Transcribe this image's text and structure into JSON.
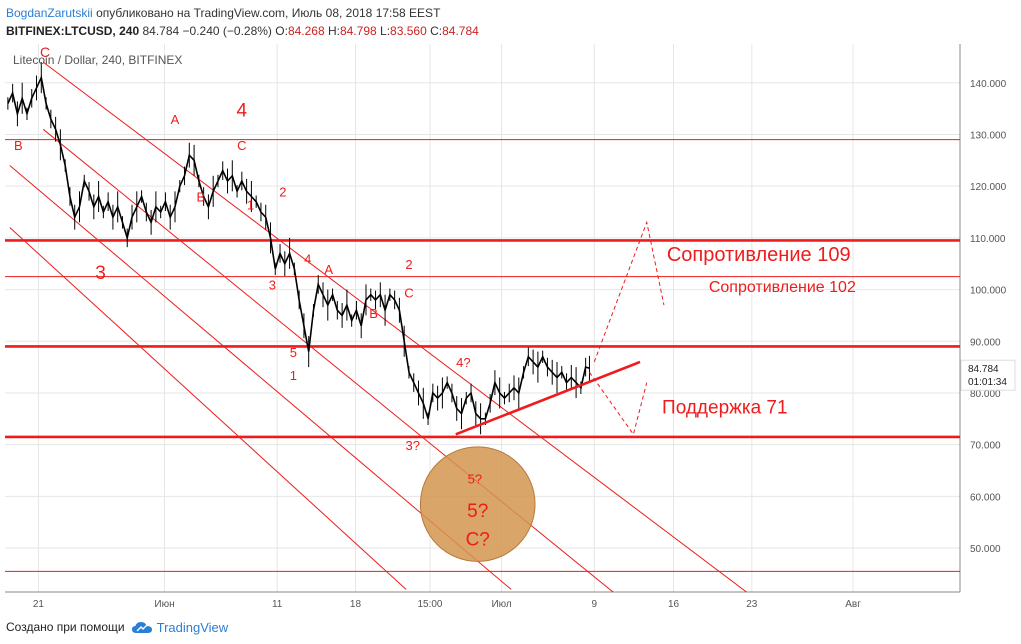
{
  "header": {
    "author": "BogdanZarutskii",
    "published_text": "опубликовано на TradingView.com, Июль 08, 2018 17:58 EEST",
    "symbol": "BITFINEX:LTCUSD, 240",
    "last": "84.784",
    "change": "−0.240 (−0.28%)",
    "o_label": "O:",
    "o_value": "84.268",
    "h_label": "H:",
    "h_value": "84.798",
    "l_label": "L:",
    "l_value": "83.560",
    "c_label": "C:",
    "c_value": "84.784"
  },
  "footer": {
    "created_with": "Создано при помощи",
    "brand": "TradingView"
  },
  "chart_data": {
    "type": "candlestick",
    "title": "Litecoin / Dollar, 240, BITFINEX",
    "ylim": [
      41.5,
      147.5
    ],
    "xlim": [
      0,
      1000
    ],
    "y_ticks": [
      "140.000",
      "130.000",
      "120.000",
      "110.000",
      "100.000",
      "90.000",
      "80.000",
      "70.000",
      "60.000",
      "50.000"
    ],
    "y_tick_values": [
      140,
      130,
      120,
      110,
      100,
      90,
      80,
      70,
      60,
      50
    ],
    "x_ticks": [
      {
        "label": "21",
        "x": 35
      },
      {
        "label": "Июн",
        "x": 167
      },
      {
        "label": "11",
        "x": 285
      },
      {
        "label": "18",
        "x": 367
      },
      {
        "label": "15:00",
        "x": 445
      },
      {
        "label": "Июл",
        "x": 520
      },
      {
        "label": "9",
        "x": 617
      },
      {
        "label": "16",
        "x": 700
      },
      {
        "label": "23",
        "x": 782
      },
      {
        "label": "Авг",
        "x": 888
      }
    ],
    "price_label": {
      "value": "84.784",
      "y": 84.784,
      "timer": "01:01:34"
    },
    "price_path": [
      [
        3,
        136
      ],
      [
        8,
        138
      ],
      [
        13,
        134
      ],
      [
        18,
        137
      ],
      [
        23,
        134
      ],
      [
        28,
        137
      ],
      [
        33,
        139
      ],
      [
        38,
        141
      ],
      [
        43,
        136
      ],
      [
        48,
        133
      ],
      [
        53,
        131
      ],
      [
        58,
        128
      ],
      [
        63,
        124
      ],
      [
        68,
        118
      ],
      [
        73,
        114
      ],
      [
        78,
        116
      ],
      [
        83,
        121
      ],
      [
        88,
        119
      ],
      [
        93,
        116
      ],
      [
        98,
        118
      ],
      [
        103,
        115
      ],
      [
        108,
        117
      ],
      [
        113,
        114
      ],
      [
        118,
        116
      ],
      [
        123,
        113
      ],
      [
        128,
        110
      ],
      [
        133,
        114
      ],
      [
        138,
        116
      ],
      [
        143,
        118
      ],
      [
        148,
        115
      ],
      [
        153,
        113
      ],
      [
        158,
        116
      ],
      [
        163,
        115
      ],
      [
        168,
        117
      ],
      [
        173,
        114
      ],
      [
        178,
        116
      ],
      [
        183,
        120
      ],
      [
        188,
        122
      ],
      [
        193,
        126
      ],
      [
        198,
        125
      ],
      [
        203,
        121
      ],
      [
        208,
        118
      ],
      [
        213,
        116
      ],
      [
        218,
        119
      ],
      [
        223,
        121
      ],
      [
        228,
        123
      ],
      [
        233,
        121
      ],
      [
        238,
        122
      ],
      [
        243,
        119
      ],
      [
        248,
        121
      ],
      [
        253,
        119
      ],
      [
        258,
        118
      ],
      [
        263,
        117
      ],
      [
        268,
        115
      ],
      [
        273,
        114
      ],
      [
        278,
        110
      ],
      [
        283,
        104
      ],
      [
        288,
        107
      ],
      [
        293,
        105
      ],
      [
        298,
        107
      ],
      [
        303,
        104
      ],
      [
        308,
        98
      ],
      [
        313,
        93
      ],
      [
        318,
        88
      ],
      [
        323,
        96
      ],
      [
        328,
        101
      ],
      [
        333,
        99
      ],
      [
        338,
        97
      ],
      [
        343,
        99
      ],
      [
        348,
        96
      ],
      [
        353,
        95
      ],
      [
        358,
        97
      ],
      [
        363,
        94
      ],
      [
        368,
        96
      ],
      [
        373,
        93
      ],
      [
        378,
        98
      ],
      [
        383,
        99
      ],
      [
        388,
        98
      ],
      [
        393,
        99
      ],
      [
        398,
        96
      ],
      [
        403,
        99
      ],
      [
        408,
        98
      ],
      [
        413,
        96
      ],
      [
        418,
        90
      ],
      [
        423,
        84
      ],
      [
        428,
        82
      ],
      [
        433,
        80
      ],
      [
        438,
        78
      ],
      [
        443,
        75
      ],
      [
        448,
        80
      ],
      [
        453,
        79
      ],
      [
        458,
        80
      ],
      [
        463,
        82
      ],
      [
        468,
        80
      ],
      [
        473,
        77
      ],
      [
        478,
        76
      ],
      [
        483,
        79
      ],
      [
        488,
        80
      ],
      [
        493,
        76
      ],
      [
        498,
        75
      ],
      [
        503,
        75
      ],
      [
        508,
        78
      ],
      [
        513,
        82
      ],
      [
        518,
        80
      ],
      [
        523,
        79
      ],
      [
        528,
        80
      ],
      [
        533,
        81
      ],
      [
        538,
        80
      ],
      [
        543,
        84
      ],
      [
        548,
        87
      ],
      [
        553,
        86
      ],
      [
        558,
        85
      ],
      [
        563,
        87
      ],
      [
        568,
        85
      ],
      [
        573,
        84
      ],
      [
        578,
        83
      ],
      [
        583,
        84
      ],
      [
        588,
        82
      ],
      [
        593,
        83
      ],
      [
        598,
        82
      ],
      [
        603,
        81
      ],
      [
        608,
        85
      ],
      [
        612,
        84.784
      ]
    ],
    "horizontal_lines": [
      {
        "y": 129,
        "style": "thin"
      },
      {
        "y": 109.5,
        "style": "thick"
      },
      {
        "y": 102.5,
        "style": "thin"
      },
      {
        "y": 89,
        "style": "thick"
      },
      {
        "y": 71.5,
        "style": "thick"
      },
      {
        "y": 45.5,
        "style": "thin"
      }
    ],
    "channel_lines": [
      {
        "x1": 40,
        "y1": 144,
        "x2": 780,
        "y2": 41
      },
      {
        "x1": 40,
        "y1": 131,
        "x2": 640,
        "y2": 41
      },
      {
        "x1": 5,
        "y1": 124,
        "x2": 530,
        "y2": 42
      },
      {
        "x1": 5,
        "y1": 112,
        "x2": 420,
        "y2": 42
      }
    ],
    "trendline": {
      "x1": 472,
      "y1": 72,
      "x2": 665,
      "y2": 86
    },
    "projection": [
      [
        617,
        86
      ],
      [
        672,
        113
      ],
      [
        690,
        97
      ]
    ],
    "projection2": [
      [
        612,
        84
      ],
      [
        658,
        72
      ],
      [
        672,
        82
      ]
    ],
    "circle": {
      "cx": 495,
      "cy": 58.5,
      "r_x": 60
    },
    "wave_labels": [
      {
        "text": "C",
        "x": 42,
        "y": 145,
        "size": 14
      },
      {
        "text": "B",
        "x": 14,
        "y": 127,
        "size": 13
      },
      {
        "text": "A",
        "x": 178,
        "y": 132,
        "size": 13
      },
      {
        "text": "4",
        "x": 248,
        "y": 133.5,
        "size": 19
      },
      {
        "text": "C",
        "x": 248,
        "y": 127,
        "size": 13
      },
      {
        "text": "B",
        "x": 205,
        "y": 117,
        "size": 13
      },
      {
        "text": "1",
        "x": 257,
        "y": 115.5,
        "size": 13
      },
      {
        "text": "2",
        "x": 291,
        "y": 118,
        "size": 13
      },
      {
        "text": "3",
        "x": 100,
        "y": 102,
        "size": 19
      },
      {
        "text": "4",
        "x": 317,
        "y": 105,
        "size": 13
      },
      {
        "text": "A",
        "x": 339,
        "y": 103,
        "size": 13
      },
      {
        "text": "3",
        "x": 280,
        "y": 100,
        "size": 13
      },
      {
        "text": "2",
        "x": 423,
        "y": 104,
        "size": 13
      },
      {
        "text": "C",
        "x": 423,
        "y": 98.5,
        "size": 13
      },
      {
        "text": "B",
        "x": 386,
        "y": 94.5,
        "size": 13
      },
      {
        "text": "5",
        "x": 302,
        "y": 87,
        "size": 13
      },
      {
        "text": "1",
        "x": 302,
        "y": 82.5,
        "size": 13
      },
      {
        "text": "4?",
        "x": 480,
        "y": 85,
        "size": 13
      },
      {
        "text": "3?",
        "x": 427,
        "y": 69,
        "size": 13
      },
      {
        "text": "5?",
        "x": 492,
        "y": 62.5,
        "size": 13
      },
      {
        "text": "5?",
        "x": 495,
        "y": 56,
        "size": 19
      },
      {
        "text": "C?",
        "x": 495,
        "y": 50.5,
        "size": 19
      }
    ],
    "annotations": [
      {
        "text": "Сопротивление 109",
        "x": 693,
        "y": 105.5,
        "size": 20
      },
      {
        "text": "Сопротивление 102",
        "x": 737,
        "y": 99.5,
        "size": 16
      },
      {
        "text": "Поддержка 71",
        "x": 688,
        "y": 76,
        "size": 19
      }
    ],
    "colors": {
      "red": "#ee1c1c",
      "price": "#000000",
      "circle_fill": "#d2954f",
      "axis_text": "#555555",
      "grid": "#e6e6e6"
    }
  }
}
